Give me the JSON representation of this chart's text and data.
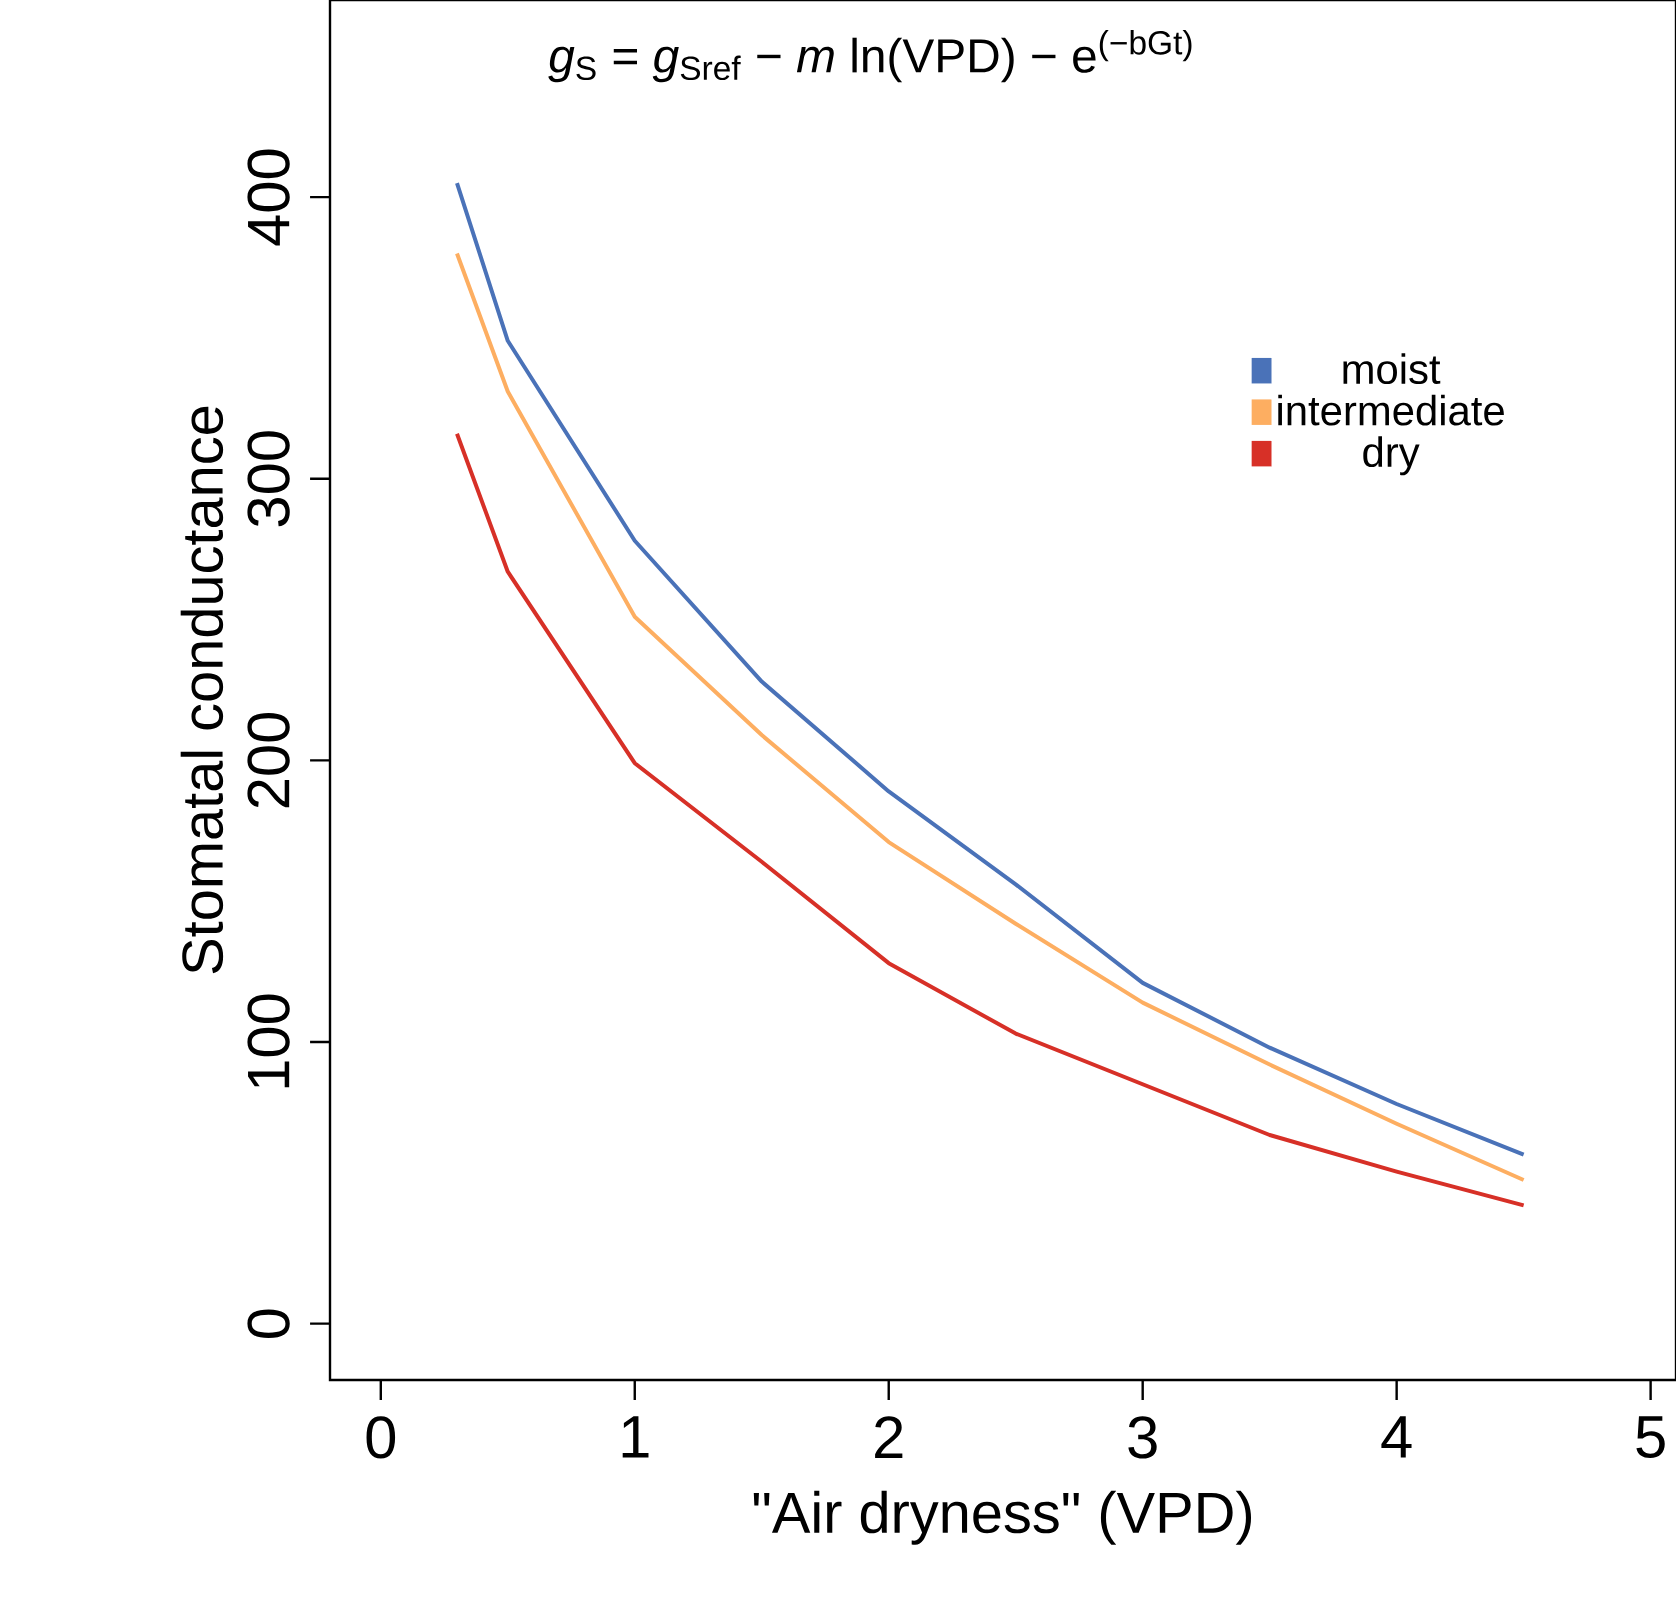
{
  "chart_data": {
    "type": "line",
    "xlabel": "\"Air dryness\" (VPD)",
    "ylabel": "Stomatal conductance",
    "annotations": [
      "*g*$_{S}$ = *g*$_{Sref}$ − *m* ln(VPD) − e$^{(−bGt)}$"
    ],
    "x": [
      0.3,
      0.5,
      1,
      1.5,
      2,
      2.5,
      3,
      3.5,
      4,
      4.5
    ],
    "series": [
      {
        "name": "moist",
        "color": "#4a72b8",
        "values": [
          405,
          349,
          278,
          228,
          189,
          156,
          121,
          98,
          78,
          60
        ]
      },
      {
        "name": "intermediate",
        "color": "#fdae61",
        "values": [
          380,
          331,
          251,
          209,
          171,
          142,
          114,
          92,
          71,
          51
        ]
      },
      {
        "name": "dry",
        "color": "#d73027",
        "values": [
          316,
          267,
          199,
          164,
          128,
          103,
          85,
          67,
          54,
          42
        ]
      }
    ],
    "xlim": [
      -0.2,
      5.1
    ],
    "ylim": [
      -20,
      470
    ],
    "xticks": [
      0,
      1,
      2,
      3,
      4,
      5
    ],
    "yticks": [
      0,
      100,
      200,
      300,
      400
    ],
    "legend": "top right",
    "grid": false,
    "marker": "none",
    "line_style": "solid"
  }
}
